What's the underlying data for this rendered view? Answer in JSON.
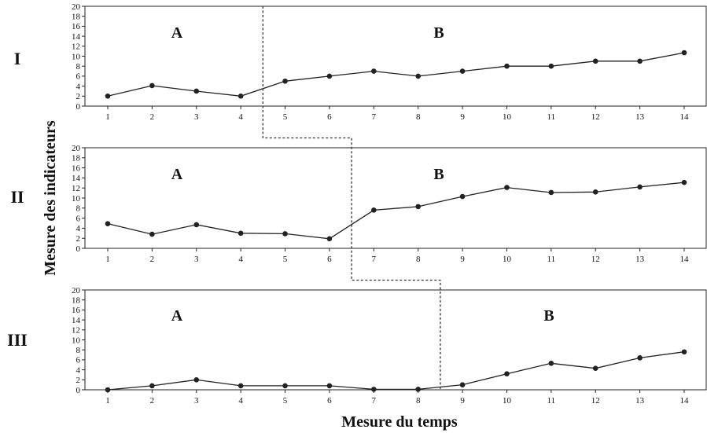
{
  "chart_data": {
    "type": "line",
    "xlabel": "Mesure du temps",
    "ylabel": "Mesure des indicateurs",
    "x": [
      1,
      2,
      3,
      4,
      5,
      6,
      7,
      8,
      9,
      10,
      11,
      12,
      13,
      14
    ],
    "ylim": [
      0,
      20
    ],
    "yticks": [
      0,
      2,
      4,
      6,
      8,
      10,
      12,
      14,
      16,
      18,
      20
    ],
    "grid": false,
    "phase_labels": [
      "A",
      "B"
    ],
    "panels": [
      {
        "label": "I",
        "phase_change_after": 4,
        "values": [
          2,
          4.1,
          3,
          2,
          5,
          6,
          7,
          6,
          7,
          8,
          8,
          9,
          9,
          10.7
        ]
      },
      {
        "label": "II",
        "phase_change_after": 6,
        "values": [
          4.9,
          2.8,
          4.7,
          3,
          2.9,
          1.9,
          7.6,
          8.3,
          10.3,
          12.1,
          11.1,
          11.2,
          12.2,
          13.1
        ]
      },
      {
        "label": "III",
        "phase_change_after": 8,
        "values": [
          0,
          0.8,
          2,
          0.8,
          0.8,
          0.8,
          0.1,
          0.1,
          1,
          3.2,
          5.3,
          4.3,
          6.4,
          7.6
        ]
      }
    ]
  }
}
